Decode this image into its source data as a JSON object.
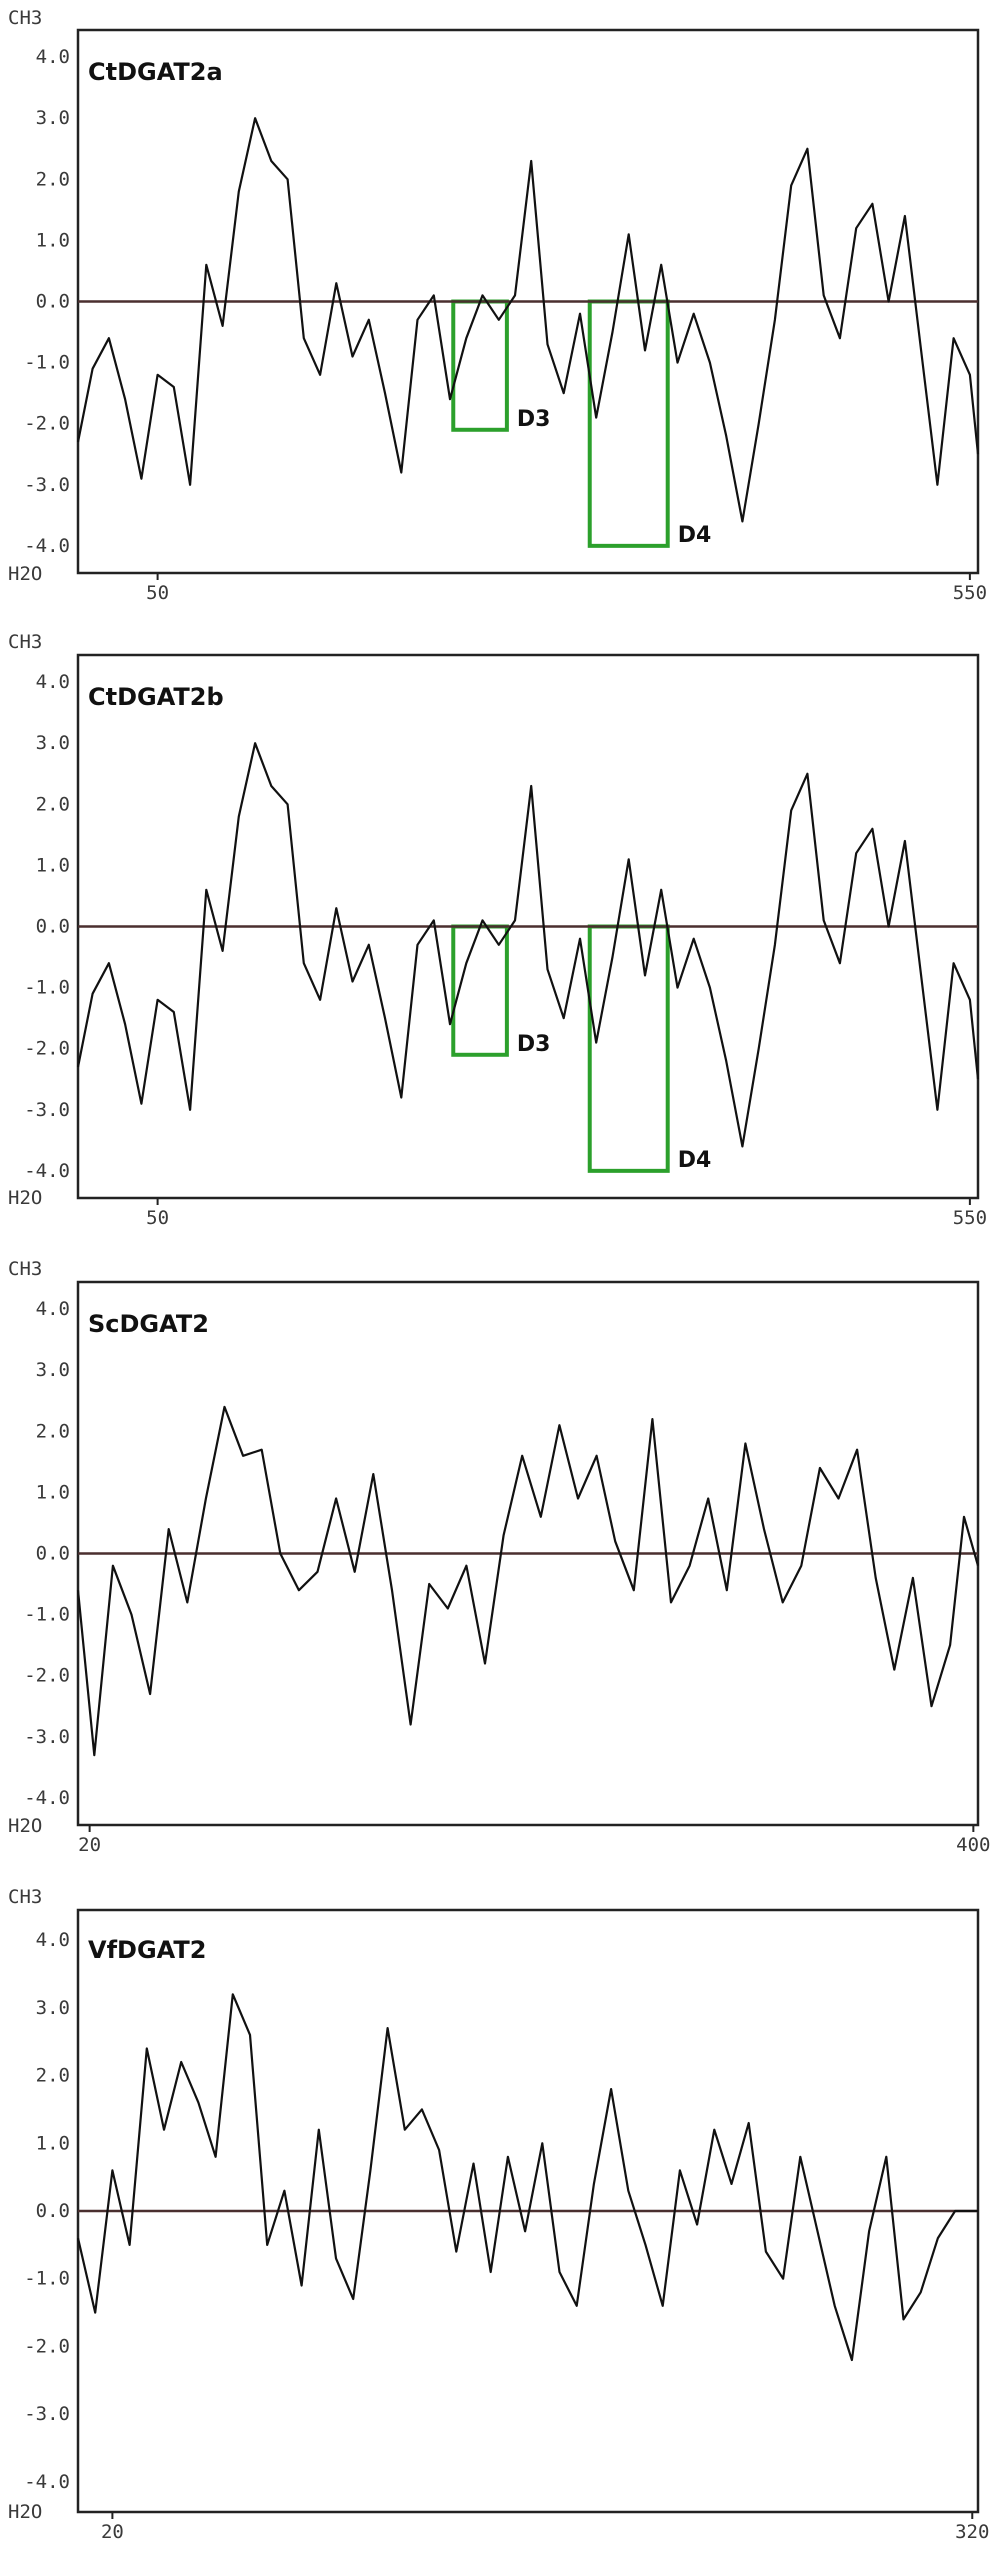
{
  "chart_data": [
    {
      "type": "line",
      "title": "CtDGAT2a",
      "top_label": "CH3",
      "bottom_label": "H2O",
      "ylim": [
        -4.0,
        4.0
      ],
      "yticks": [
        "4.0",
        "3.0",
        "2.0",
        "1.0",
        "0.0",
        "-1.0",
        "-2.0",
        "-3.0",
        "-4.0"
      ],
      "xlim": [
        1,
        555
      ],
      "xticks": [
        {
          "value": 50,
          "label": "50"
        },
        {
          "value": 550,
          "label": "550"
        }
      ],
      "grid": false,
      "series": [
        {
          "name": "hydropathy",
          "color": "#111111",
          "x": [
            1,
            10,
            20,
            30,
            40,
            50,
            60,
            70,
            80,
            90,
            100,
            110,
            120,
            130,
            140,
            150,
            160,
            170,
            180,
            190,
            200,
            210,
            220,
            230,
            240,
            250,
            260,
            270,
            280,
            290,
            300,
            310,
            320,
            330,
            340,
            350,
            360,
            370,
            380,
            390,
            400,
            410,
            420,
            430,
            440,
            450,
            460,
            470,
            480,
            490,
            500,
            510,
            520,
            530,
            540,
            550,
            555
          ],
          "y": [
            -2.3,
            -1.1,
            -0.6,
            -1.6,
            -2.9,
            -1.2,
            -1.4,
            -3.0,
            0.6,
            -0.4,
            1.8,
            3.0,
            2.3,
            2.0,
            -0.6,
            -1.2,
            0.3,
            -0.9,
            -0.3,
            -1.5,
            -2.8,
            -0.3,
            0.1,
            -1.6,
            -0.6,
            0.1,
            -0.3,
            0.1,
            2.3,
            -0.7,
            -1.5,
            -0.2,
            -1.9,
            -0.5,
            1.1,
            -0.8,
            0.6,
            -1.0,
            -0.2,
            -1.0,
            -2.2,
            -3.6,
            -2.0,
            -0.3,
            1.9,
            2.5,
            0.1,
            -0.6,
            1.2,
            1.6,
            0.0,
            1.4,
            -0.8,
            -3.0,
            -0.6,
            -1.2,
            -2.5
          ]
        }
      ],
      "annotations": [
        {
          "label": "D3",
          "x_start": 232,
          "x_end": 265,
          "y_top": 0.0,
          "y_bottom": -2.1,
          "color": "#2ca02c"
        },
        {
          "label": "D4",
          "x_start": 316,
          "x_end": 364,
          "y_top": 0.0,
          "y_bottom": -4.0,
          "color": "#2ca02c"
        }
      ]
    },
    {
      "type": "line",
      "title": "CtDGAT2b",
      "top_label": "CH3",
      "bottom_label": "H2O",
      "ylim": [
        -4.0,
        4.0
      ],
      "yticks": [
        "4.0",
        "3.0",
        "2.0",
        "1.0",
        "0.0",
        "-1.0",
        "-2.0",
        "-3.0",
        "-4.0"
      ],
      "xlim": [
        1,
        555
      ],
      "xticks": [
        {
          "value": 50,
          "label": "50"
        },
        {
          "value": 550,
          "label": "550"
        }
      ],
      "grid": false,
      "series": [
        {
          "name": "hydropathy",
          "color": "#111111",
          "x": [
            1,
            10,
            20,
            30,
            40,
            50,
            60,
            70,
            80,
            90,
            100,
            110,
            120,
            130,
            140,
            150,
            160,
            170,
            180,
            190,
            200,
            210,
            220,
            230,
            240,
            250,
            260,
            270,
            280,
            290,
            300,
            310,
            320,
            330,
            340,
            350,
            360,
            370,
            380,
            390,
            400,
            410,
            420,
            430,
            440,
            450,
            460,
            470,
            480,
            490,
            500,
            510,
            520,
            530,
            540,
            550,
            555
          ],
          "y": [
            -2.3,
            -1.1,
            -0.6,
            -1.6,
            -2.9,
            -1.2,
            -1.4,
            -3.0,
            0.6,
            -0.4,
            1.8,
            3.0,
            2.3,
            2.0,
            -0.6,
            -1.2,
            0.3,
            -0.9,
            -0.3,
            -1.5,
            -2.8,
            -0.3,
            0.1,
            -1.6,
            -0.6,
            0.1,
            -0.3,
            0.1,
            2.3,
            -0.7,
            -1.5,
            -0.2,
            -1.9,
            -0.5,
            1.1,
            -0.8,
            0.6,
            -1.0,
            -0.2,
            -1.0,
            -2.2,
            -3.6,
            -2.0,
            -0.3,
            1.9,
            2.5,
            0.1,
            -0.6,
            1.2,
            1.6,
            0.0,
            1.4,
            -0.8,
            -3.0,
            -0.6,
            -1.2,
            -2.5
          ]
        }
      ],
      "annotations": [
        {
          "label": "D3",
          "x_start": 232,
          "x_end": 265,
          "y_top": 0.0,
          "y_bottom": -2.1,
          "color": "#2ca02c"
        },
        {
          "label": "D4",
          "x_start": 316,
          "x_end": 364,
          "y_top": 0.0,
          "y_bottom": -4.0,
          "color": "#2ca02c"
        }
      ]
    },
    {
      "type": "line",
      "title": "ScDGAT2",
      "top_label": "CH3",
      "bottom_label": "H2O",
      "ylim": [
        -4.0,
        4.0
      ],
      "yticks": [
        "4.0",
        "3.0",
        "2.0",
        "1.0",
        "0.0",
        "-1.0",
        "-2.0",
        "-3.0",
        "-4.0"
      ],
      "xlim": [
        15,
        402
      ],
      "xticks": [
        {
          "value": 20,
          "label": "20"
        },
        {
          "value": 400,
          "label": "400"
        }
      ],
      "grid": false,
      "series": [
        {
          "name": "hydropathy",
          "color": "#111111",
          "x": [
            15,
            22,
            30,
            38,
            46,
            54,
            62,
            70,
            78,
            86,
            94,
            102,
            110,
            118,
            126,
            134,
            142,
            150,
            158,
            166,
            174,
            182,
            190,
            198,
            206,
            214,
            222,
            230,
            238,
            246,
            254,
            262,
            270,
            278,
            286,
            294,
            302,
            310,
            318,
            326,
            334,
            342,
            350,
            358,
            366,
            374,
            382,
            390,
            396,
            402
          ],
          "y": [
            -0.6,
            -3.3,
            -0.2,
            -1.0,
            -2.3,
            0.4,
            -0.8,
            0.9,
            2.4,
            1.6,
            1.7,
            0.0,
            -0.6,
            -0.3,
            0.9,
            -0.3,
            1.3,
            -0.6,
            -2.8,
            -0.5,
            -0.9,
            -0.2,
            -1.8,
            0.3,
            1.6,
            0.6,
            2.1,
            0.9,
            1.6,
            0.2,
            -0.6,
            2.2,
            -0.8,
            -0.2,
            0.9,
            -0.6,
            1.8,
            0.4,
            -0.8,
            -0.2,
            1.4,
            0.9,
            1.7,
            -0.4,
            -1.9,
            -0.4,
            -2.5,
            -1.5,
            0.6,
            -0.2
          ]
        }
      ],
      "annotations": []
    },
    {
      "type": "line",
      "title": "VfDGAT2",
      "top_label": "CH3",
      "bottom_label": "H2O",
      "ylim": [
        -4.0,
        4.0
      ],
      "yticks": [
        "4.0",
        "3.0",
        "2.0",
        "1.0",
        "0.0",
        "-1.0",
        "-2.0",
        "-3.0",
        "-4.0"
      ],
      "xlim": [
        8,
        322
      ],
      "xticks": [
        {
          "value": 20,
          "label": "20"
        },
        {
          "value": 320,
          "label": "320"
        }
      ],
      "grid": false,
      "series": [
        {
          "name": "hydropathy",
          "color": "#111111",
          "x": [
            8,
            14,
            20,
            26,
            32,
            38,
            44,
            50,
            56,
            62,
            68,
            74,
            80,
            86,
            92,
            98,
            104,
            110,
            116,
            122,
            128,
            134,
            140,
            146,
            152,
            158,
            164,
            170,
            176,
            182,
            188,
            194,
            200,
            206,
            212,
            218,
            224,
            230,
            236,
            242,
            248,
            254,
            260,
            266,
            272,
            278,
            284,
            290,
            296,
            302,
            308,
            314,
            322
          ],
          "y": [
            -0.4,
            -1.5,
            0.6,
            -0.5,
            2.4,
            1.2,
            2.2,
            1.6,
            0.8,
            3.2,
            2.6,
            -0.5,
            0.3,
            -1.1,
            1.2,
            -0.7,
            -1.3,
            0.6,
            2.7,
            1.2,
            1.5,
            0.9,
            -0.6,
            0.7,
            -0.9,
            0.8,
            -0.3,
            1.0,
            -0.9,
            -1.4,
            0.4,
            1.8,
            0.3,
            -0.5,
            -1.4,
            0.6,
            -0.2,
            1.2,
            0.4,
            1.3,
            -0.6,
            -1.0,
            0.8,
            -0.3,
            -1.4,
            -2.2,
            -0.3,
            0.8,
            -1.6,
            -1.2,
            -0.4,
            0.0,
            0.0
          ]
        }
      ],
      "annotations": []
    }
  ]
}
